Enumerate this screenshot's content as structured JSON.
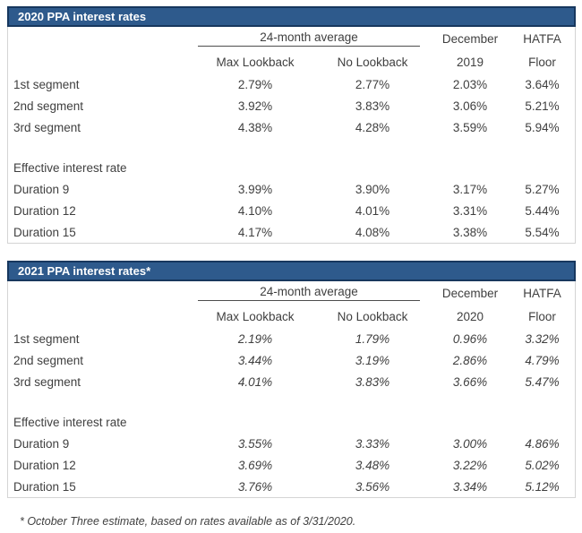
{
  "colors": {
    "title_bar_fill": "#2e5a8c",
    "title_bar_border": "#17375e",
    "table_border": "#d4d4d4",
    "text": "#3f3f3f"
  },
  "tables": [
    {
      "title": "2020 PPA interest rates",
      "group_header": "24-month average",
      "sub_headers": [
        "Max Lookback",
        "No Lookback"
      ],
      "year_col": {
        "line1": "December",
        "line2": "2019"
      },
      "floor_col": {
        "line1": "HATFA",
        "line2": "Floor"
      },
      "segment_rows": [
        {
          "label": "1st segment",
          "values": [
            "2.79%",
            "2.77%",
            "2.03%",
            "3.64%"
          ]
        },
        {
          "label": "2nd segment",
          "values": [
            "3.92%",
            "3.83%",
            "3.06%",
            "5.21%"
          ]
        },
        {
          "label": "3rd segment",
          "values": [
            "4.38%",
            "4.28%",
            "3.59%",
            "5.94%"
          ]
        }
      ],
      "section_label": "Effective interest rate",
      "duration_rows": [
        {
          "label": "Duration 9",
          "values": [
            "3.99%",
            "3.90%",
            "3.17%",
            "5.27%"
          ]
        },
        {
          "label": "Duration 12",
          "values": [
            "4.10%",
            "4.01%",
            "3.31%",
            "5.44%"
          ]
        },
        {
          "label": "Duration 15",
          "values": [
            "4.17%",
            "4.08%",
            "3.38%",
            "5.54%"
          ]
        }
      ]
    },
    {
      "title": "2021 PPA interest rates*",
      "group_header": "24-month average",
      "sub_headers": [
        "Max Lookback",
        "No Lookback"
      ],
      "year_col": {
        "line1": "December",
        "line2": "2020"
      },
      "floor_col": {
        "line1": "HATFA",
        "line2": "Floor"
      },
      "segment_rows": [
        {
          "label": "1st segment",
          "values": [
            "2.19%",
            "1.79%",
            "0.96%",
            "3.32%"
          ]
        },
        {
          "label": "2nd segment",
          "values": [
            "3.44%",
            "3.19%",
            "2.86%",
            "4.79%"
          ]
        },
        {
          "label": "3rd segment",
          "values": [
            "4.01%",
            "3.83%",
            "3.66%",
            "5.47%"
          ]
        }
      ],
      "section_label": "Effective interest rate",
      "duration_rows": [
        {
          "label": "Duration 9",
          "values": [
            "3.55%",
            "3.33%",
            "3.00%",
            "4.86%"
          ]
        },
        {
          "label": "Duration 12",
          "values": [
            "3.69%",
            "3.48%",
            "3.22%",
            "5.02%"
          ]
        },
        {
          "label": "Duration 15",
          "values": [
            "3.76%",
            "3.56%",
            "3.34%",
            "5.12%"
          ]
        }
      ]
    }
  ],
  "footnote": "* October Three estimate, based on rates available as of 3/31/2020."
}
